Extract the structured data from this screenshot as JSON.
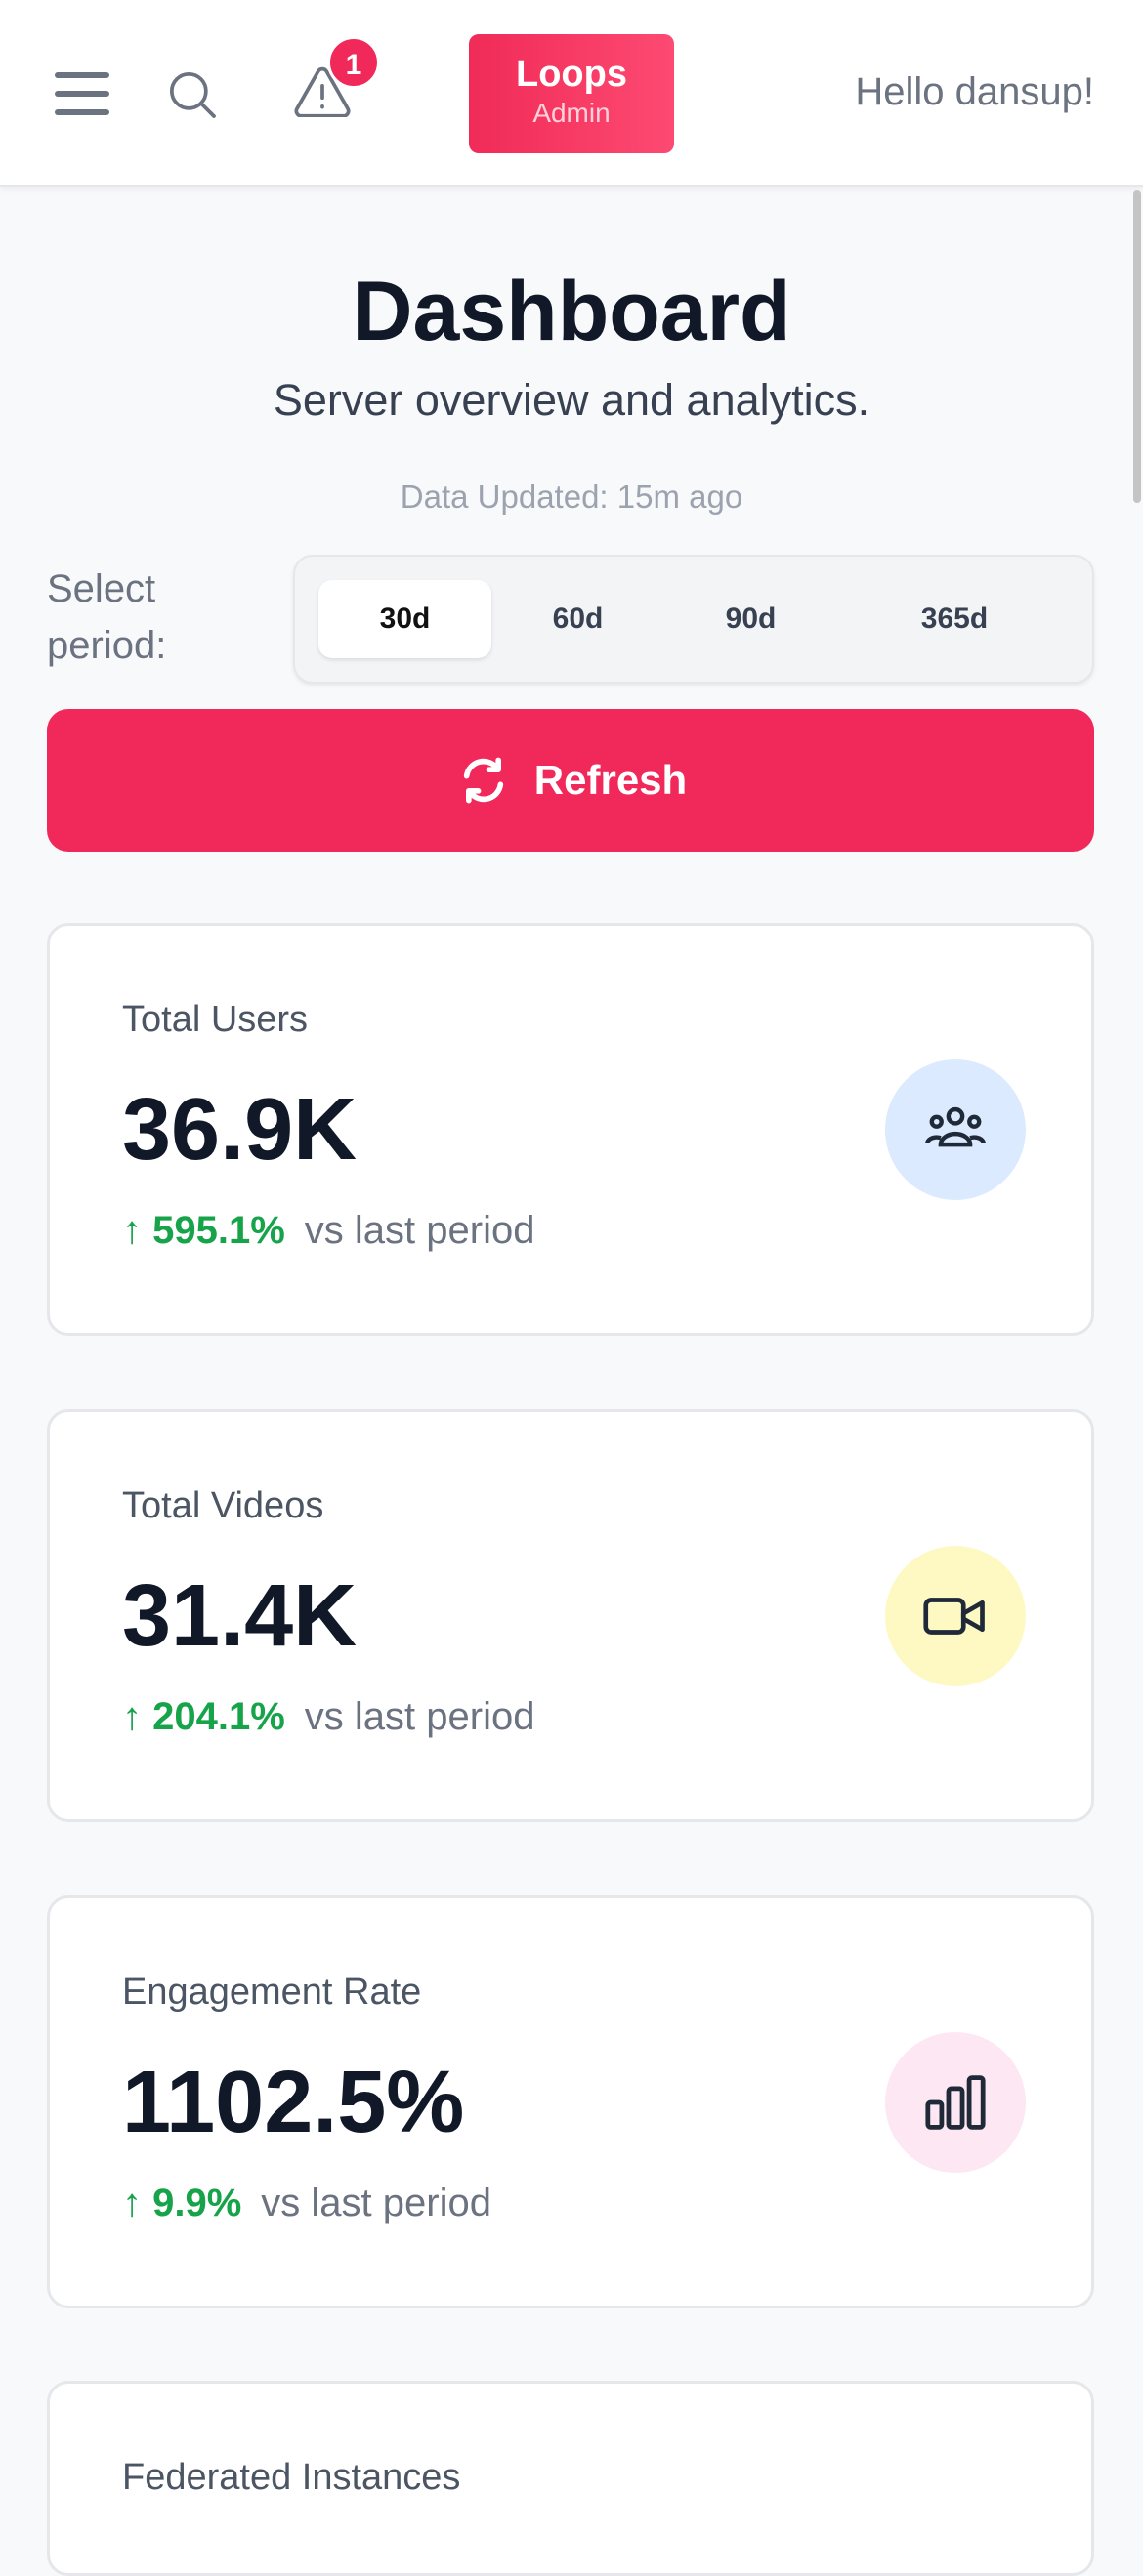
{
  "header": {
    "notification_count": "1",
    "brand": "Loops",
    "brand_sub": "Admin",
    "greeting": "Hello dansup!"
  },
  "page": {
    "title": "Dashboard",
    "subtitle": "Server overview and analytics.",
    "updated": "Data Updated: 15m ago"
  },
  "period": {
    "label_line1": "Select",
    "label_line2": "period:",
    "options": [
      "30d",
      "60d",
      "90d",
      "365d"
    ],
    "selected": "30d"
  },
  "refresh_label": "Refresh",
  "cards": [
    {
      "label": "Total Users",
      "value": "36.9K",
      "change": "↑ 595.1%",
      "vs": "vs last period",
      "icon": "users-icon",
      "icon_bg": "#dbeafe"
    },
    {
      "label": "Total Videos",
      "value": "31.4K",
      "change": "↑ 204.1%",
      "vs": "vs last period",
      "icon": "video-icon",
      "icon_bg": "#fef9c3"
    },
    {
      "label": "Engagement Rate",
      "value": "1102.5%",
      "change": "↑ 9.9%",
      "vs": "vs last period",
      "icon": "bar-chart-icon",
      "icon_bg": "#fce7f3"
    },
    {
      "label": "Federated Instances"
    }
  ]
}
